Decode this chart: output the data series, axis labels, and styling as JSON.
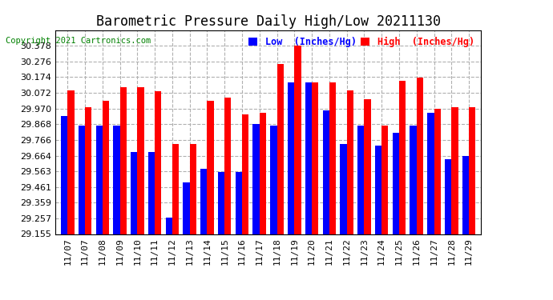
{
  "title": "Barometric Pressure Daily High/Low 20211130",
  "copyright": "Copyright 2021 Cartronics.com",
  "legend_low": "Low  (Inches/Hg)",
  "legend_high": "High  (Inches/Hg)",
  "categories": [
    "11/07",
    "11/07",
    "11/08",
    "11/09",
    "11/10",
    "11/11",
    "11/12",
    "11/13",
    "11/14",
    "11/15",
    "11/16",
    "11/17",
    "11/18",
    "11/19",
    "11/20",
    "11/21",
    "11/22",
    "11/23",
    "11/24",
    "11/25",
    "11/26",
    "11/27",
    "11/28",
    "11/29"
  ],
  "low_values": [
    29.92,
    29.86,
    29.86,
    29.86,
    29.69,
    29.69,
    29.26,
    29.49,
    29.58,
    29.56,
    29.56,
    29.87,
    29.86,
    30.14,
    30.14,
    29.96,
    29.74,
    29.86,
    29.73,
    29.81,
    29.86,
    29.94,
    29.64,
    29.66
  ],
  "high_values": [
    30.09,
    29.98,
    30.02,
    30.11,
    30.11,
    30.08,
    29.74,
    29.74,
    30.02,
    30.04,
    29.93,
    29.94,
    30.26,
    30.38,
    30.14,
    30.14,
    30.09,
    30.03,
    29.86,
    30.15,
    30.17,
    29.97,
    29.98,
    29.98
  ],
  "low_color": "#0000ff",
  "high_color": "#ff0000",
  "bg_color": "#ffffff",
  "ylim_min": 29.155,
  "ylim_max": 30.48,
  "yticks": [
    29.155,
    29.257,
    29.359,
    29.461,
    29.563,
    29.664,
    29.766,
    29.868,
    29.97,
    30.072,
    30.174,
    30.276,
    30.378
  ],
  "grid_color": "#b0b0b0",
  "bar_width": 0.38,
  "title_fontsize": 12,
  "tick_fontsize": 8,
  "copyright_fontsize": 7.5
}
